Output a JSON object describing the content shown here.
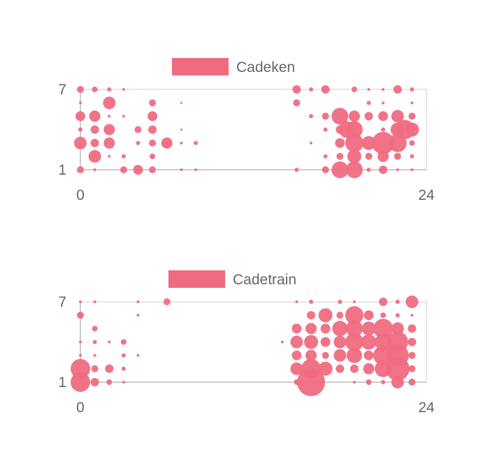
{
  "colors": {
    "bubble": "#f06b81",
    "axis": "#cccccc",
    "text": "#666666"
  },
  "chart_data": [
    {
      "type": "bubble",
      "legend": "Cadeken",
      "xlim": [
        0,
        24
      ],
      "ylim": [
        1,
        7
      ],
      "xticks": [
        "0",
        "24"
      ],
      "yticks": [
        "1",
        "7"
      ],
      "points": [
        {
          "x": 0,
          "y": 7,
          "r": 5
        },
        {
          "x": 1,
          "y": 7,
          "r": 4
        },
        {
          "x": 2,
          "y": 7,
          "r": 3
        },
        {
          "x": 3,
          "y": 7,
          "r": 2
        },
        {
          "x": 0,
          "y": 6,
          "r": 2
        },
        {
          "x": 2,
          "y": 6,
          "r": 9
        },
        {
          "x": 5,
          "y": 6,
          "r": 5
        },
        {
          "x": 7,
          "y": 6,
          "r": 1.5
        },
        {
          "x": 0,
          "y": 5,
          "r": 7
        },
        {
          "x": 1,
          "y": 5,
          "r": 8
        },
        {
          "x": 2,
          "y": 5,
          "r": 2
        },
        {
          "x": 3,
          "y": 5,
          "r": 2
        },
        {
          "x": 5,
          "y": 5,
          "r": 7
        },
        {
          "x": 0,
          "y": 4,
          "r": 3
        },
        {
          "x": 1,
          "y": 4,
          "r": 6
        },
        {
          "x": 2,
          "y": 4,
          "r": 8
        },
        {
          "x": 4,
          "y": 4,
          "r": 5
        },
        {
          "x": 5,
          "y": 4,
          "r": 6
        },
        {
          "x": 7,
          "y": 4,
          "r": 1.5
        },
        {
          "x": 0,
          "y": 3,
          "r": 9
        },
        {
          "x": 1,
          "y": 3,
          "r": 6
        },
        {
          "x": 2,
          "y": 3,
          "r": 8
        },
        {
          "x": 4,
          "y": 3,
          "r": 3
        },
        {
          "x": 5,
          "y": 3,
          "r": 5
        },
        {
          "x": 6,
          "y": 3,
          "r": 8
        },
        {
          "x": 7,
          "y": 3,
          "r": 2
        },
        {
          "x": 8,
          "y": 3,
          "r": 3
        },
        {
          "x": 1,
          "y": 2,
          "r": 9
        },
        {
          "x": 2,
          "y": 2,
          "r": 2
        },
        {
          "x": 3,
          "y": 2,
          "r": 3
        },
        {
          "x": 5,
          "y": 2,
          "r": 4
        },
        {
          "x": 0,
          "y": 1,
          "r": 5
        },
        {
          "x": 1,
          "y": 1,
          "r": 2
        },
        {
          "x": 3,
          "y": 1,
          "r": 5
        },
        {
          "x": 4,
          "y": 1,
          "r": 7
        },
        {
          "x": 5,
          "y": 1,
          "r": 5
        },
        {
          "x": 7,
          "y": 1,
          "r": 2
        },
        {
          "x": 8,
          "y": 1,
          "r": 2
        },
        {
          "x": 15,
          "y": 7,
          "r": 6
        },
        {
          "x": 16,
          "y": 7,
          "r": 3
        },
        {
          "x": 17,
          "y": 7,
          "r": 6
        },
        {
          "x": 19,
          "y": 7,
          "r": 4
        },
        {
          "x": 20,
          "y": 7,
          "r": 2
        },
        {
          "x": 21,
          "y": 7,
          "r": 2
        },
        {
          "x": 22,
          "y": 7,
          "r": 6
        },
        {
          "x": 23,
          "y": 7,
          "r": 3
        },
        {
          "x": 15,
          "y": 6,
          "r": 5
        },
        {
          "x": 20,
          "y": 6,
          "r": 3
        },
        {
          "x": 21,
          "y": 6,
          "r": 2
        },
        {
          "x": 23,
          "y": 6,
          "r": 2
        },
        {
          "x": 16,
          "y": 5,
          "r": 3
        },
        {
          "x": 17,
          "y": 5,
          "r": 5
        },
        {
          "x": 18,
          "y": 5,
          "r": 12
        },
        {
          "x": 19,
          "y": 5,
          "r": 8
        },
        {
          "x": 20,
          "y": 5,
          "r": 6
        },
        {
          "x": 21,
          "y": 5,
          "r": 7
        },
        {
          "x": 22,
          "y": 5,
          "r": 9
        },
        {
          "x": 23,
          "y": 5,
          "r": 5
        },
        {
          "x": 17,
          "y": 4,
          "r": 3
        },
        {
          "x": 18,
          "y": 4,
          "r": 6
        },
        {
          "x": 18.5,
          "y": 4,
          "r": 12
        },
        {
          "x": 19,
          "y": 4,
          "r": 12
        },
        {
          "x": 21,
          "y": 4,
          "r": 3
        },
        {
          "x": 22,
          "y": 4,
          "r": 10
        },
        {
          "x": 22.5,
          "y": 4,
          "r": 14
        },
        {
          "x": 23,
          "y": 4,
          "r": 10
        },
        {
          "x": 16,
          "y": 3,
          "r": 2
        },
        {
          "x": 18,
          "y": 3,
          "r": 7
        },
        {
          "x": 19,
          "y": 3,
          "r": 13
        },
        {
          "x": 20,
          "y": 3,
          "r": 10
        },
        {
          "x": 21,
          "y": 3,
          "r": 16
        },
        {
          "x": 22,
          "y": 3,
          "r": 13
        },
        {
          "x": 23,
          "y": 3,
          "r": 4
        },
        {
          "x": 17,
          "y": 2,
          "r": 3
        },
        {
          "x": 18,
          "y": 2,
          "r": 5
        },
        {
          "x": 19,
          "y": 2,
          "r": 10
        },
        {
          "x": 20,
          "y": 2,
          "r": 5
        },
        {
          "x": 21,
          "y": 2,
          "r": 8
        },
        {
          "x": 22,
          "y": 2,
          "r": 5
        },
        {
          "x": 23,
          "y": 2,
          "r": 3
        },
        {
          "x": 15,
          "y": 1,
          "r": 3
        },
        {
          "x": 17,
          "y": 1,
          "r": 5
        },
        {
          "x": 18,
          "y": 1,
          "r": 12
        },
        {
          "x": 19,
          "y": 1,
          "r": 12
        },
        {
          "x": 20,
          "y": 1,
          "r": 3
        },
        {
          "x": 21,
          "y": 1,
          "r": 6
        },
        {
          "x": 22,
          "y": 1,
          "r": 2
        },
        {
          "x": 23,
          "y": 1,
          "r": 2
        }
      ]
    },
    {
      "type": "bubble",
      "legend": "Cadetrain",
      "xlim": [
        0,
        24
      ],
      "ylim": [
        1,
        7
      ],
      "xticks": [
        "0",
        "24"
      ],
      "yticks": [
        "1",
        "7"
      ],
      "points": [
        {
          "x": 0,
          "y": 7,
          "r": 2
        },
        {
          "x": 1,
          "y": 7,
          "r": 2
        },
        {
          "x": 4,
          "y": 7,
          "r": 2
        },
        {
          "x": 6,
          "y": 7,
          "r": 5
        },
        {
          "x": 0,
          "y": 6,
          "r": 5
        },
        {
          "x": 4,
          "y": 6,
          "r": 2
        },
        {
          "x": 1,
          "y": 5,
          "r": 4
        },
        {
          "x": 0,
          "y": 4,
          "r": 2
        },
        {
          "x": 1,
          "y": 4,
          "r": 3
        },
        {
          "x": 2,
          "y": 4,
          "r": 2
        },
        {
          "x": 3,
          "y": 4,
          "r": 4
        },
        {
          "x": 0,
          "y": 3,
          "r": 2
        },
        {
          "x": 1,
          "y": 3,
          "r": 2
        },
        {
          "x": 3,
          "y": 3,
          "r": 3
        },
        {
          "x": 4,
          "y": 3,
          "r": 2
        },
        {
          "x": 0,
          "y": 2,
          "r": 14
        },
        {
          "x": 1,
          "y": 2,
          "r": 5
        },
        {
          "x": 2,
          "y": 2,
          "r": 6
        },
        {
          "x": 3,
          "y": 2,
          "r": 3
        },
        {
          "x": 0,
          "y": 1,
          "r": 14
        },
        {
          "x": 1,
          "y": 1,
          "r": 6
        },
        {
          "x": 2,
          "y": 1,
          "r": 4
        },
        {
          "x": 3,
          "y": 1,
          "r": 2
        },
        {
          "x": 15,
          "y": 7,
          "r": 2
        },
        {
          "x": 16,
          "y": 7,
          "r": 3
        },
        {
          "x": 18,
          "y": 7,
          "r": 3
        },
        {
          "x": 19,
          "y": 7,
          "r": 2
        },
        {
          "x": 21,
          "y": 7,
          "r": 6
        },
        {
          "x": 22,
          "y": 7,
          "r": 3
        },
        {
          "x": 23,
          "y": 7,
          "r": 9
        },
        {
          "x": 16,
          "y": 6,
          "r": 6
        },
        {
          "x": 17,
          "y": 6,
          "r": 10
        },
        {
          "x": 18,
          "y": 6,
          "r": 5
        },
        {
          "x": 19,
          "y": 6,
          "r": 13
        },
        {
          "x": 20,
          "y": 6,
          "r": 7
        },
        {
          "x": 21,
          "y": 6,
          "r": 4
        },
        {
          "x": 22,
          "y": 6,
          "r": 3
        },
        {
          "x": 23,
          "y": 6,
          "r": 2
        },
        {
          "x": 15,
          "y": 5,
          "r": 7
        },
        {
          "x": 16,
          "y": 5,
          "r": 8
        },
        {
          "x": 17,
          "y": 5,
          "r": 7
        },
        {
          "x": 18,
          "y": 5,
          "r": 11
        },
        {
          "x": 19,
          "y": 5,
          "r": 12
        },
        {
          "x": 20,
          "y": 5,
          "r": 10
        },
        {
          "x": 21,
          "y": 5,
          "r": 14
        },
        {
          "x": 22,
          "y": 5,
          "r": 9
        },
        {
          "x": 23,
          "y": 5,
          "r": 6
        },
        {
          "x": 14,
          "y": 4,
          "r": 2
        },
        {
          "x": 15,
          "y": 4,
          "r": 9
        },
        {
          "x": 16,
          "y": 4,
          "r": 10
        },
        {
          "x": 17,
          "y": 4,
          "r": 7
        },
        {
          "x": 18,
          "y": 4,
          "r": 9
        },
        {
          "x": 19,
          "y": 4,
          "r": 13
        },
        {
          "x": 20,
          "y": 4,
          "r": 11
        },
        {
          "x": 21,
          "y": 4,
          "r": 12
        },
        {
          "x": 22,
          "y": 4,
          "r": 15
        },
        {
          "x": 23,
          "y": 4,
          "r": 6
        },
        {
          "x": 15,
          "y": 3,
          "r": 7
        },
        {
          "x": 16,
          "y": 3,
          "r": 8
        },
        {
          "x": 17,
          "y": 3,
          "r": 5
        },
        {
          "x": 18,
          "y": 3,
          "r": 9
        },
        {
          "x": 19,
          "y": 3,
          "r": 11
        },
        {
          "x": 20,
          "y": 3,
          "r": 7
        },
        {
          "x": 21,
          "y": 3,
          "r": 14
        },
        {
          "x": 22,
          "y": 3,
          "r": 16
        },
        {
          "x": 23,
          "y": 3,
          "r": 5
        },
        {
          "x": 15,
          "y": 2,
          "r": 9
        },
        {
          "x": 16,
          "y": 2,
          "r": 14
        },
        {
          "x": 17,
          "y": 2,
          "r": 10
        },
        {
          "x": 18,
          "y": 2,
          "r": 6
        },
        {
          "x": 19,
          "y": 2,
          "r": 6
        },
        {
          "x": 20,
          "y": 2,
          "r": 8
        },
        {
          "x": 21,
          "y": 2,
          "r": 12
        },
        {
          "x": 22,
          "y": 2,
          "r": 17
        },
        {
          "x": 23,
          "y": 2,
          "r": 5
        },
        {
          "x": 15,
          "y": 1,
          "r": 4
        },
        {
          "x": 16,
          "y": 1,
          "r": 20
        },
        {
          "x": 19,
          "y": 1,
          "r": 2
        },
        {
          "x": 20,
          "y": 1,
          "r": 4
        },
        {
          "x": 21,
          "y": 1,
          "r": 3
        },
        {
          "x": 22,
          "y": 1,
          "r": 9
        },
        {
          "x": 23,
          "y": 1,
          "r": 5
        }
      ]
    }
  ]
}
